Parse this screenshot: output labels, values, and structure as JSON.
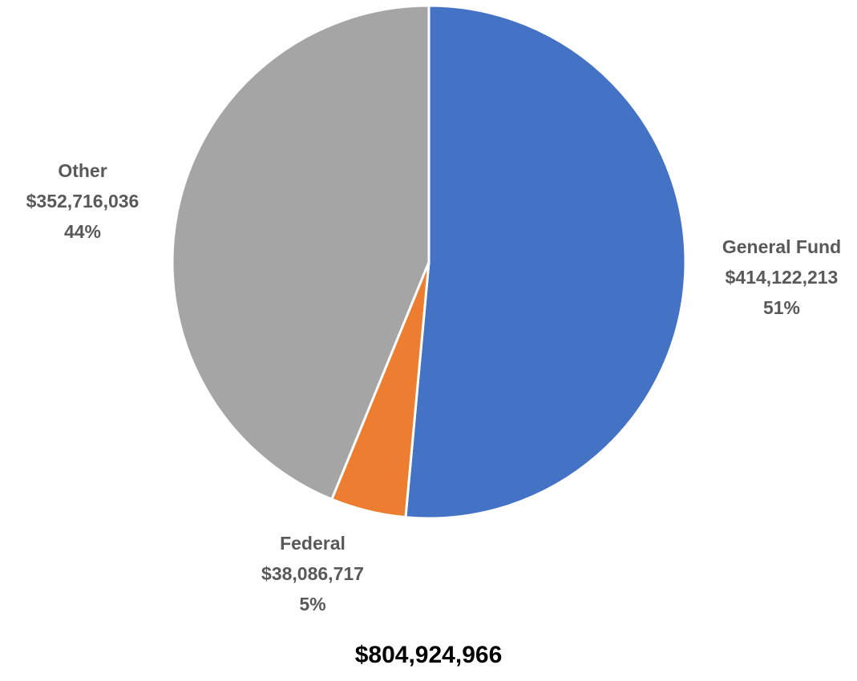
{
  "chart_data": {
    "type": "pie",
    "categories": [
      "General Fund",
      "Federal",
      "Other"
    ],
    "values": [
      414122213,
      38086717,
      352716036
    ],
    "value_labels": [
      "$414,122,213",
      "$38,086,717",
      "$352,716,036"
    ],
    "percent_labels": [
      "51%",
      "5%",
      "44%"
    ],
    "colors": [
      "#4472C4",
      "#ED7D31",
      "#A5A5A5"
    ],
    "total_label": "$804,924,966",
    "legend": "none",
    "label_color": "#595959"
  }
}
